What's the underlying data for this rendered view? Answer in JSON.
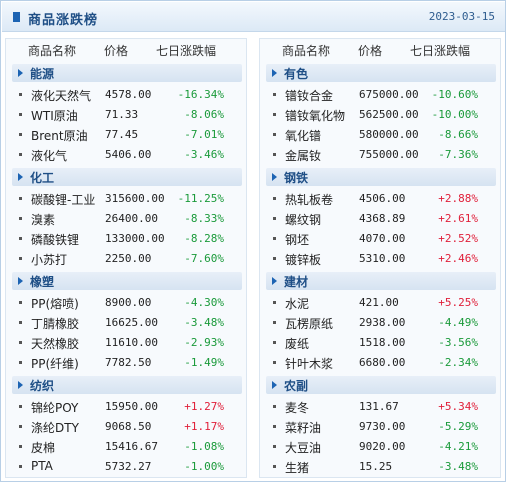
{
  "header": {
    "title": "商品涨跌榜",
    "date": "2023-03-15"
  },
  "columns": {
    "name": "商品名称",
    "price": "价格",
    "change": "七日涨跌幅"
  },
  "colors": {
    "up": "#e0203a",
    "down": "#1a9a3a",
    "accent": "#1d64b3"
  },
  "left": [
    {
      "category": "能源",
      "items": [
        {
          "name": "液化天然气",
          "price": "4578.00",
          "change": "-16.34%",
          "dir": "down"
        },
        {
          "name": "WTI原油",
          "price": "71.33",
          "change": "-8.06%",
          "dir": "down"
        },
        {
          "name": "Brent原油",
          "price": "77.45",
          "change": "-7.01%",
          "dir": "down"
        },
        {
          "name": "液化气",
          "price": "5406.00",
          "change": "-3.46%",
          "dir": "down"
        }
      ]
    },
    {
      "category": "化工",
      "items": [
        {
          "name": "碳酸锂-工业",
          "price": "315600.00",
          "change": "-11.25%",
          "dir": "down"
        },
        {
          "name": "溴素",
          "price": "26400.00",
          "change": "-8.33%",
          "dir": "down"
        },
        {
          "name": "磷酸铁锂",
          "price": "133000.00",
          "change": "-8.28%",
          "dir": "down"
        },
        {
          "name": "小苏打",
          "price": "2250.00",
          "change": "-7.60%",
          "dir": "down"
        }
      ]
    },
    {
      "category": "橡塑",
      "items": [
        {
          "name": "PP(熔喷)",
          "price": "8900.00",
          "change": "-4.30%",
          "dir": "down"
        },
        {
          "name": "丁腈橡胶",
          "price": "16625.00",
          "change": "-3.48%",
          "dir": "down"
        },
        {
          "name": "天然橡胶",
          "price": "11610.00",
          "change": "-2.93%",
          "dir": "down"
        },
        {
          "name": "PP(纤维)",
          "price": "7782.50",
          "change": "-1.49%",
          "dir": "down"
        }
      ]
    },
    {
      "category": "纺织",
      "items": [
        {
          "name": "锦纶POY",
          "price": "15950.00",
          "change": "+1.27%",
          "dir": "up"
        },
        {
          "name": "涤纶DTY",
          "price": "9068.50",
          "change": "+1.17%",
          "dir": "up"
        },
        {
          "name": "皮棉",
          "price": "15416.67",
          "change": "-1.08%",
          "dir": "down"
        },
        {
          "name": "PTA",
          "price": "5732.27",
          "change": "-1.00%",
          "dir": "down"
        }
      ]
    }
  ],
  "right": [
    {
      "category": "有色",
      "items": [
        {
          "name": "镨钕合金",
          "price": "675000.00",
          "change": "-10.60%",
          "dir": "down"
        },
        {
          "name": "镨钕氧化物",
          "price": "562500.00",
          "change": "-10.00%",
          "dir": "down"
        },
        {
          "name": "氧化镨",
          "price": "580000.00",
          "change": "-8.66%",
          "dir": "down"
        },
        {
          "name": "金属钕",
          "price": "755000.00",
          "change": "-7.36%",
          "dir": "down"
        }
      ]
    },
    {
      "category": "钢铁",
      "items": [
        {
          "name": "热轧板卷",
          "price": "4506.00",
          "change": "+2.88%",
          "dir": "up"
        },
        {
          "name": "螺纹钢",
          "price": "4368.89",
          "change": "+2.61%",
          "dir": "up"
        },
        {
          "name": "钢坯",
          "price": "4070.00",
          "change": "+2.52%",
          "dir": "up"
        },
        {
          "name": "镀锌板",
          "price": "5310.00",
          "change": "+2.46%",
          "dir": "up"
        }
      ]
    },
    {
      "category": "建材",
      "items": [
        {
          "name": "水泥",
          "price": "421.00",
          "change": "+5.25%",
          "dir": "up"
        },
        {
          "name": "瓦楞原纸",
          "price": "2938.00",
          "change": "-4.49%",
          "dir": "down"
        },
        {
          "name": "废纸",
          "price": "1518.00",
          "change": "-3.56%",
          "dir": "down"
        },
        {
          "name": "针叶木浆",
          "price": "6680.00",
          "change": "-2.34%",
          "dir": "down"
        }
      ]
    },
    {
      "category": "农副",
      "items": [
        {
          "name": "麦冬",
          "price": "131.67",
          "change": "+5.34%",
          "dir": "up"
        },
        {
          "name": "菜籽油",
          "price": "9730.00",
          "change": "-5.29%",
          "dir": "down"
        },
        {
          "name": "大豆油",
          "price": "9020.00",
          "change": "-4.21%",
          "dir": "down"
        },
        {
          "name": "生猪",
          "price": "15.25",
          "change": "-3.48%",
          "dir": "down"
        }
      ]
    }
  ]
}
